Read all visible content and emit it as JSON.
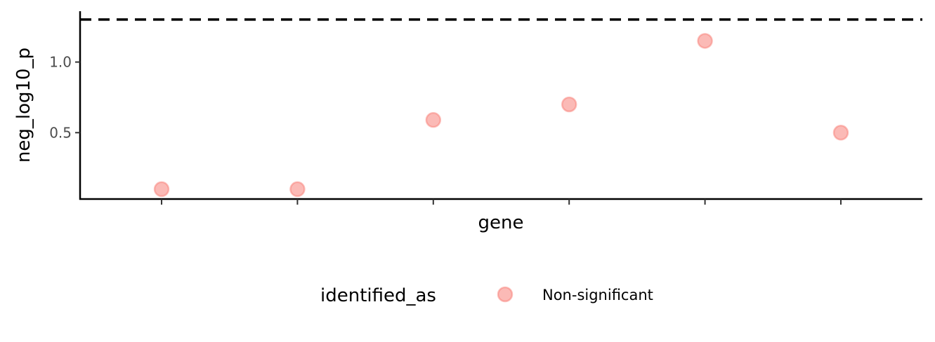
{
  "chart_data": {
    "type": "scatter",
    "xlabel": "gene",
    "ylabel": "neg_log10_p",
    "categories": [
      "",
      "",
      "",
      "",
      "",
      ""
    ],
    "series": [
      {
        "name": "Non-significant",
        "color": "#F8766D",
        "values": [
          0.1,
          0.1,
          0.59,
          0.7,
          1.15,
          0.5
        ]
      }
    ],
    "ylim": [
      0.03,
      1.36
    ],
    "yticks": [
      0.5,
      1.0
    ],
    "ytick_labels": [
      "0.5",
      "1.0"
    ],
    "reference_line": {
      "y": 1.30103,
      "style": "dashed",
      "color": "#000000"
    },
    "grid": false,
    "legend": {
      "title": "identified_as",
      "placement": "bottom",
      "items": [
        {
          "label": "Non-significant",
          "color": "#F8766D"
        }
      ]
    }
  }
}
